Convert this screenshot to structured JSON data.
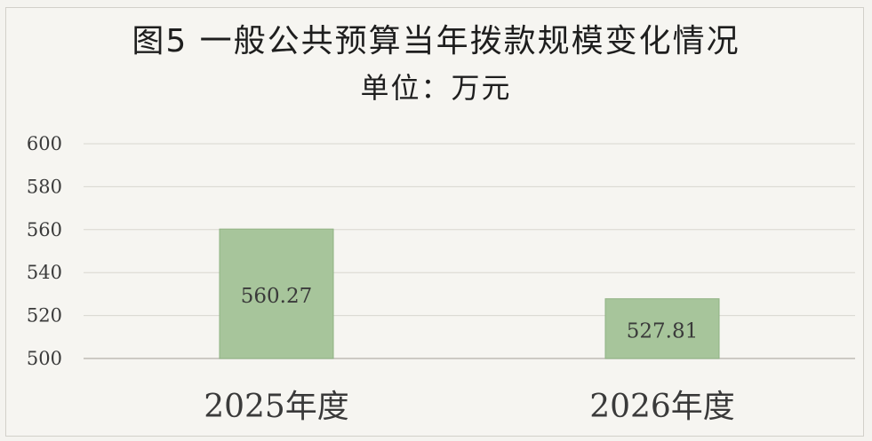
{
  "chart_data": {
    "type": "bar",
    "title": "图5 一般公共预算当年拨款规模变化情况",
    "subtitle": "单位：万元",
    "categories": [
      "2025年度",
      "2026年度"
    ],
    "values": [
      560.27,
      527.81
    ],
    "value_labels": [
      "560.27",
      "527.81"
    ],
    "ylim": [
      500,
      600
    ],
    "yticks": [
      "600",
      "580",
      "560",
      "540",
      "520",
      "500"
    ],
    "ytick_values": [
      600,
      580,
      560,
      540,
      520,
      500
    ],
    "grid": true,
    "colors": {
      "bar": "#a7c59b",
      "bar_border": "#8fb283",
      "grid": "#d8d6d0",
      "axis": "#bdbbb5",
      "text": "#3a3a3a"
    }
  }
}
